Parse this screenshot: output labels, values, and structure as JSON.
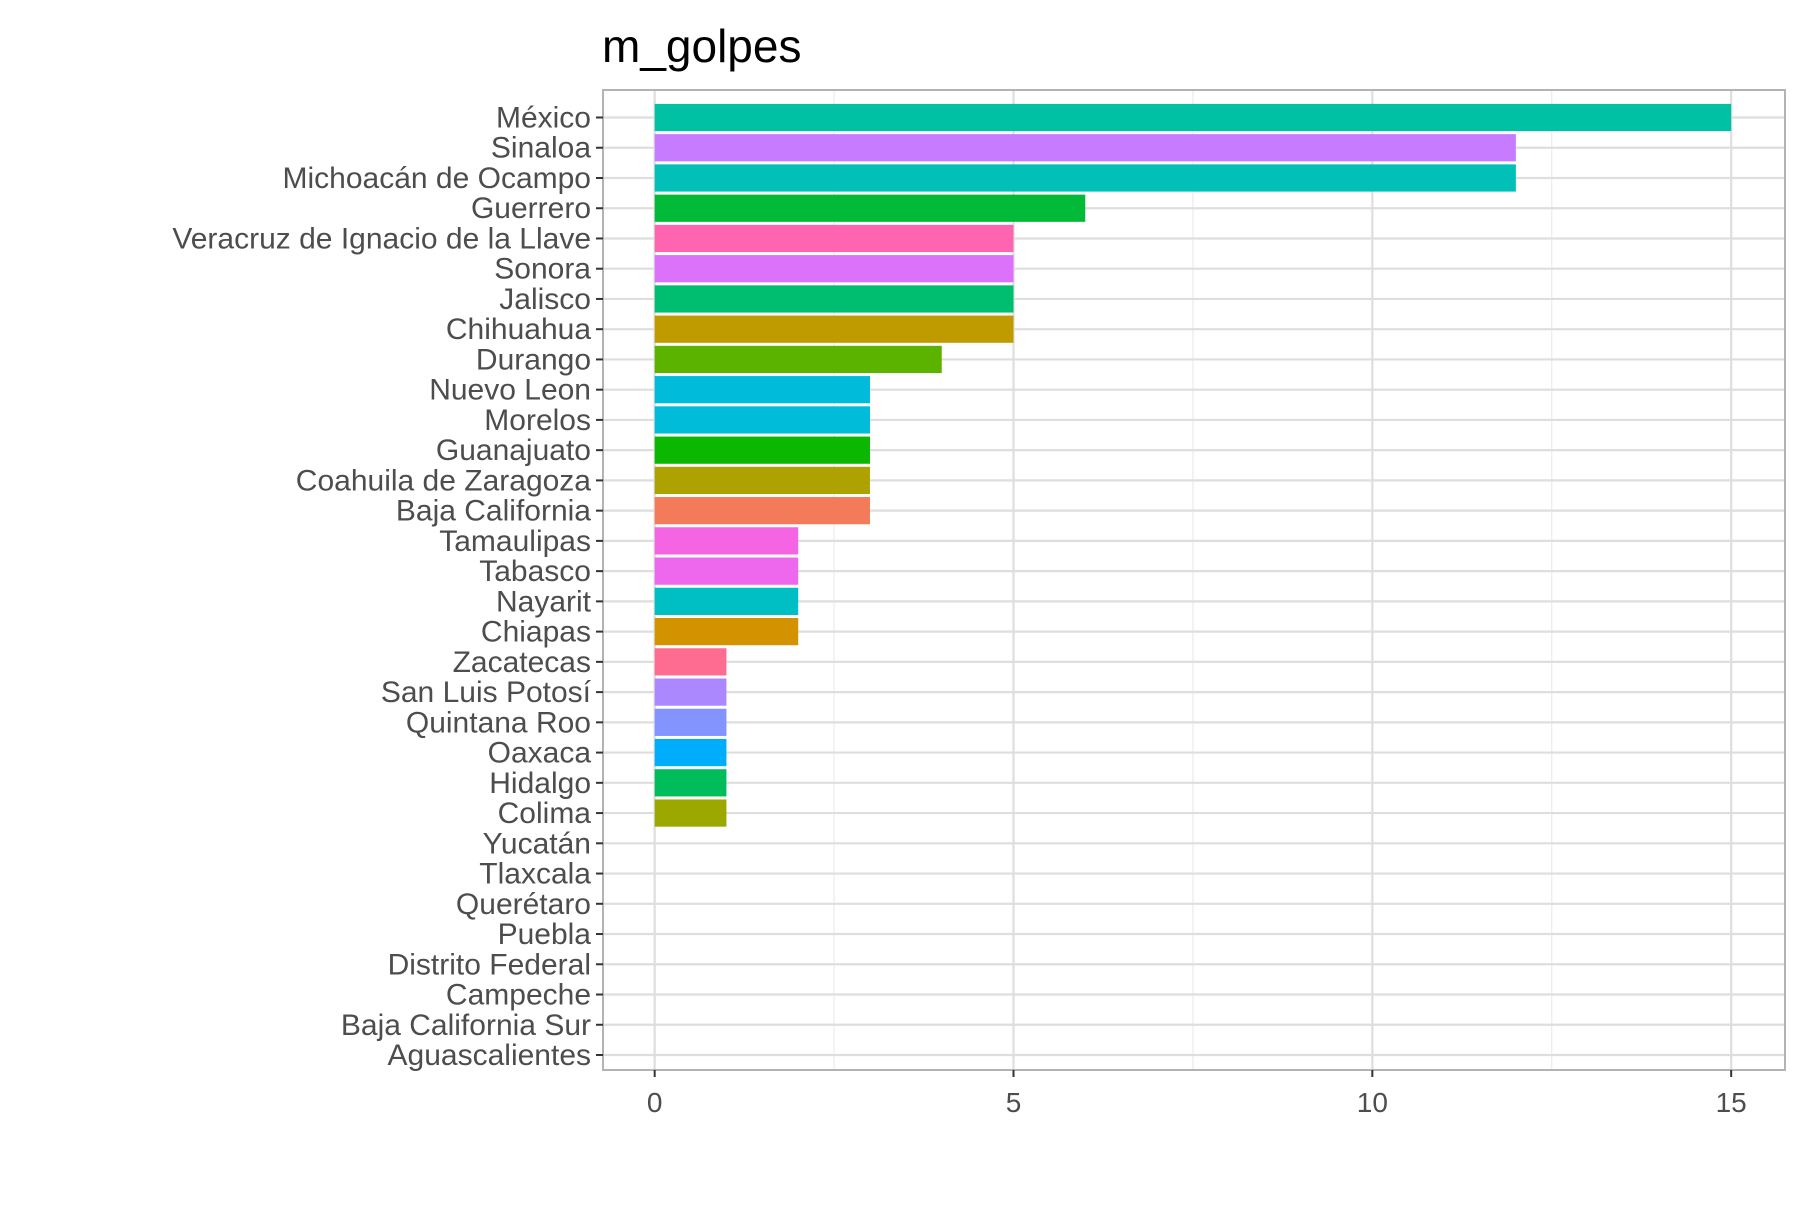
{
  "chart_data": {
    "type": "bar",
    "orientation": "horizontal",
    "title": "m_golpes",
    "xlabel": "",
    "ylabel": "",
    "xlim": [
      -0.72,
      15.75
    ],
    "xticks": [
      0,
      5,
      10,
      15
    ],
    "grid": true,
    "legend": "none",
    "categories": [
      "México",
      "Sinaloa",
      "Michoacán de Ocampo",
      "Guerrero",
      "Veracruz de Ignacio de la Llave",
      "Sonora",
      "Jalisco",
      "Chihuahua",
      "Durango",
      "Nuevo Leon",
      "Morelos",
      "Guanajuato",
      "Coahuila de Zaragoza",
      "Baja California",
      "Tamaulipas",
      "Tabasco",
      "Nayarit",
      "Chiapas",
      "Zacatecas",
      "San Luis Potosí",
      "Quintana Roo",
      "Oaxaca",
      "Hidalgo",
      "Colima",
      "Yucatán",
      "Tlaxcala",
      "Querétaro",
      "Puebla",
      "Distrito Federal",
      "Campeche",
      "Baja California Sur",
      "Aguascalientes"
    ],
    "values": [
      15,
      12,
      12,
      6,
      5,
      5,
      5,
      5,
      4,
      3,
      3,
      3,
      3,
      3,
      2,
      2,
      2,
      2,
      1,
      1,
      1,
      1,
      1,
      1,
      0,
      0,
      0,
      0,
      0,
      0,
      0,
      0
    ],
    "colors": [
      "#00C1A3",
      "#C77CFF",
      "#00C0B8",
      "#00BA38",
      "#FF64B0",
      "#DC71FA",
      "#00BE70",
      "#C09B00",
      "#5BB300",
      "#00BBDA",
      "#00BCD8",
      "#0CB702",
      "#AEA200",
      "#F37B59",
      "#F564E3",
      "#ED68ED",
      "#00BFC4",
      "#D39200",
      "#FF6C91",
      "#AC88FF",
      "#8494FF",
      "#00ADFA",
      "#00BD5C",
      "#9CA700",
      "#00B4F0",
      "#F8766D",
      "#FF61C3",
      "#E58700",
      "#00C08B",
      "#619CFF",
      "#7CAE00",
      "#00B81F"
    ]
  }
}
